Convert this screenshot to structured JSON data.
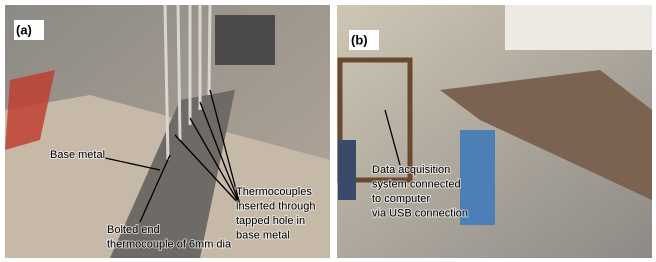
{
  "panels": [
    {
      "label": "(a)",
      "annotations": [
        {
          "lines": [
            "Base metal"
          ]
        },
        {
          "lines": [
            "Bolted end",
            "thermocouple of 6mm dia"
          ]
        },
        {
          "lines": [
            "Thermocouples",
            "inserted through",
            "tapped hole in",
            "base metal"
          ]
        }
      ]
    },
    {
      "label": "(b)",
      "annotations": [
        {
          "lines": [
            "Data acquisition",
            "system connected",
            "to computer",
            "via USB connection"
          ]
        }
      ]
    }
  ]
}
